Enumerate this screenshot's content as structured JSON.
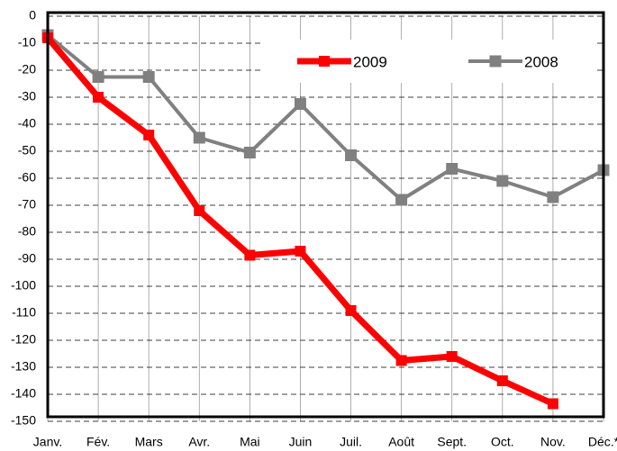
{
  "chart_data": {
    "type": "line",
    "categories": [
      "Janv.",
      "Fév.",
      "Mars",
      "Avr.",
      "Mai",
      "Juin",
      "Juil.",
      "Août",
      "Sept.",
      "Oct.",
      "Nov.",
      "Déc.*"
    ],
    "series": [
      {
        "name": "2009",
        "color": "#ff0000",
        "values": [
          -8,
          -30,
          -44,
          -72,
          -88.5,
          -87,
          -109,
          -127.5,
          -126,
          -135,
          -143.5,
          null
        ]
      },
      {
        "name": "2008",
        "color": "#808080",
        "values": [
          -7,
          -22.5,
          -22.5,
          -45,
          -50.5,
          -32.5,
          -51.5,
          -68,
          -56.5,
          -61,
          -67,
          -57
        ]
      }
    ],
    "ylim": [
      -150,
      0
    ],
    "yticks": [
      0,
      -10,
      -20,
      -30,
      -40,
      -50,
      -60,
      -70,
      -80,
      -90,
      -100,
      -110,
      -120,
      -130,
      -140,
      -150
    ],
    "grid": true,
    "legend": "top"
  }
}
